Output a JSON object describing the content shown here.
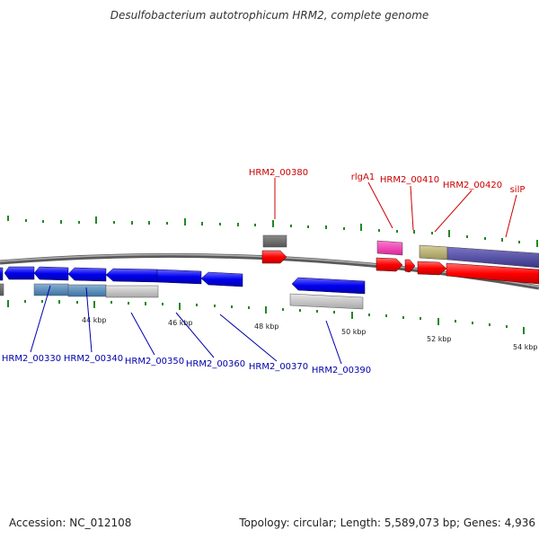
{
  "title": "Desulfobacterium autotrophicum HRM2, complete genome",
  "footer": {
    "accession": "Accession: NC_012108",
    "topology": "Topology: circular; Length: 5,589,073 bp; Genes: 4,936"
  },
  "ruler": {
    "labels": [
      "44 kbp",
      "46 kbp",
      "48 kbp",
      "50 kbp",
      "52 kbp",
      "54 kbp"
    ]
  },
  "gene_labels_top": [
    "HRM2_00380",
    "rlgA1",
    "HRM2_00410",
    "HRM2_00420",
    "silP"
  ],
  "gene_labels_bottom": [
    "HRM2_00330",
    "HRM2_00340",
    "HRM2_00350",
    "HRM2_00360",
    "HRM2_00370",
    "HRM2_00390"
  ],
  "colors": {
    "forward_cds": "#ff0000",
    "reverse_cds": "#0000ff",
    "label_top": "#cc0000",
    "label_bottom": "#0000aa",
    "tick": "#228822",
    "backbone": "#777777"
  }
}
